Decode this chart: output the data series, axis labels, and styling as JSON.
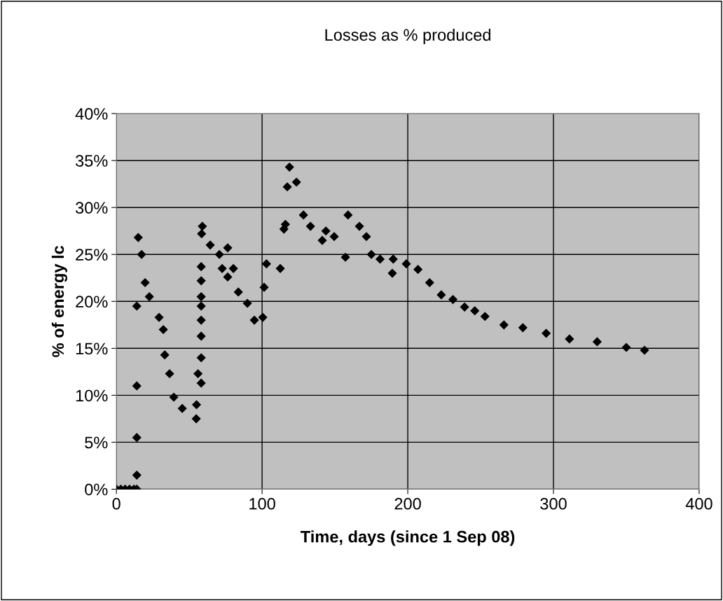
{
  "chart_data": {
    "type": "scatter",
    "title": "Losses as % produced",
    "xlabel": "Time, days (since 1 Sep 08)",
    "ylabel": "% of energy lc",
    "x": [
      0,
      3,
      6,
      9,
      12,
      14,
      14,
      14,
      14,
      14,
      15,
      17.3,
      19.7,
      22.6,
      29.3,
      32.2,
      33.2,
      36.5,
      39.4,
      45.2,
      54.8,
      55,
      56,
      58.2,
      58.2,
      58.2,
      58.2,
      58.2,
      58.2,
      58.2,
      58.2,
      58.5,
      59,
      64.4,
      70.7,
      72.6,
      76.4,
      76.4,
      80.3,
      83.7,
      89.9,
      94.7,
      100.5,
      101.4,
      103,
      112.5,
      115,
      116,
      117.3,
      118.8,
      123.6,
      128.4,
      133.2,
      141.3,
      143.8,
      149.5,
      157.2,
      159,
      166.8,
      171.6,
      175,
      181,
      189.4,
      190,
      199,
      207,
      215,
      223,
      231,
      239,
      246,
      253,
      266,
      279,
      295,
      311,
      330,
      350,
      362.5
    ],
    "values": [
      0,
      0,
      0,
      0,
      0,
      0,
      1.5,
      5.5,
      11,
      19.5,
      26.8,
      25.0,
      22.0,
      20.5,
      18.3,
      17.0,
      14.3,
      12.3,
      9.8,
      8.6,
      7.5,
      9.0,
      12.3,
      11.3,
      14.0,
      16.3,
      18.0,
      19.5,
      20.5,
      22.2,
      23.7,
      27.2,
      28.0,
      26.0,
      25.0,
      23.5,
      22.6,
      25.7,
      23.5,
      21.0,
      19.8,
      18.0,
      18.3,
      21.5,
      24.0,
      23.5,
      27.7,
      28.2,
      32.2,
      34.3,
      32.7,
      29.2,
      28.0,
      26.5,
      27.5,
      26.9,
      24.7,
      29.2,
      28.0,
      26.9,
      25.0,
      24.5,
      23.0,
      24.5,
      24.0,
      23.4,
      22.0,
      20.7,
      20.2,
      19.4,
      19.0,
      18.4,
      17.5,
      17.2,
      16.6,
      16.0,
      15.7,
      15.1,
      14.8
    ],
    "color": "#000000",
    "marker": "diamond",
    "grid": true,
    "legend": false,
    "xlim": [
      0,
      400
    ],
    "xticks": [
      0,
      100,
      200,
      300,
      400
    ],
    "ylim": [
      0,
      40
    ],
    "yticks": [
      {
        "value": 0,
        "label": "0%"
      },
      {
        "value": 5,
        "label": "5%"
      },
      {
        "value": 10,
        "label": "10%"
      },
      {
        "value": 15,
        "label": "15%"
      },
      {
        "value": 20,
        "label": "20%"
      },
      {
        "value": 25,
        "label": "25%"
      },
      {
        "value": 30,
        "label": "30%"
      },
      {
        "value": 35,
        "label": "35%"
      },
      {
        "value": 40,
        "label": "40%"
      }
    ]
  }
}
